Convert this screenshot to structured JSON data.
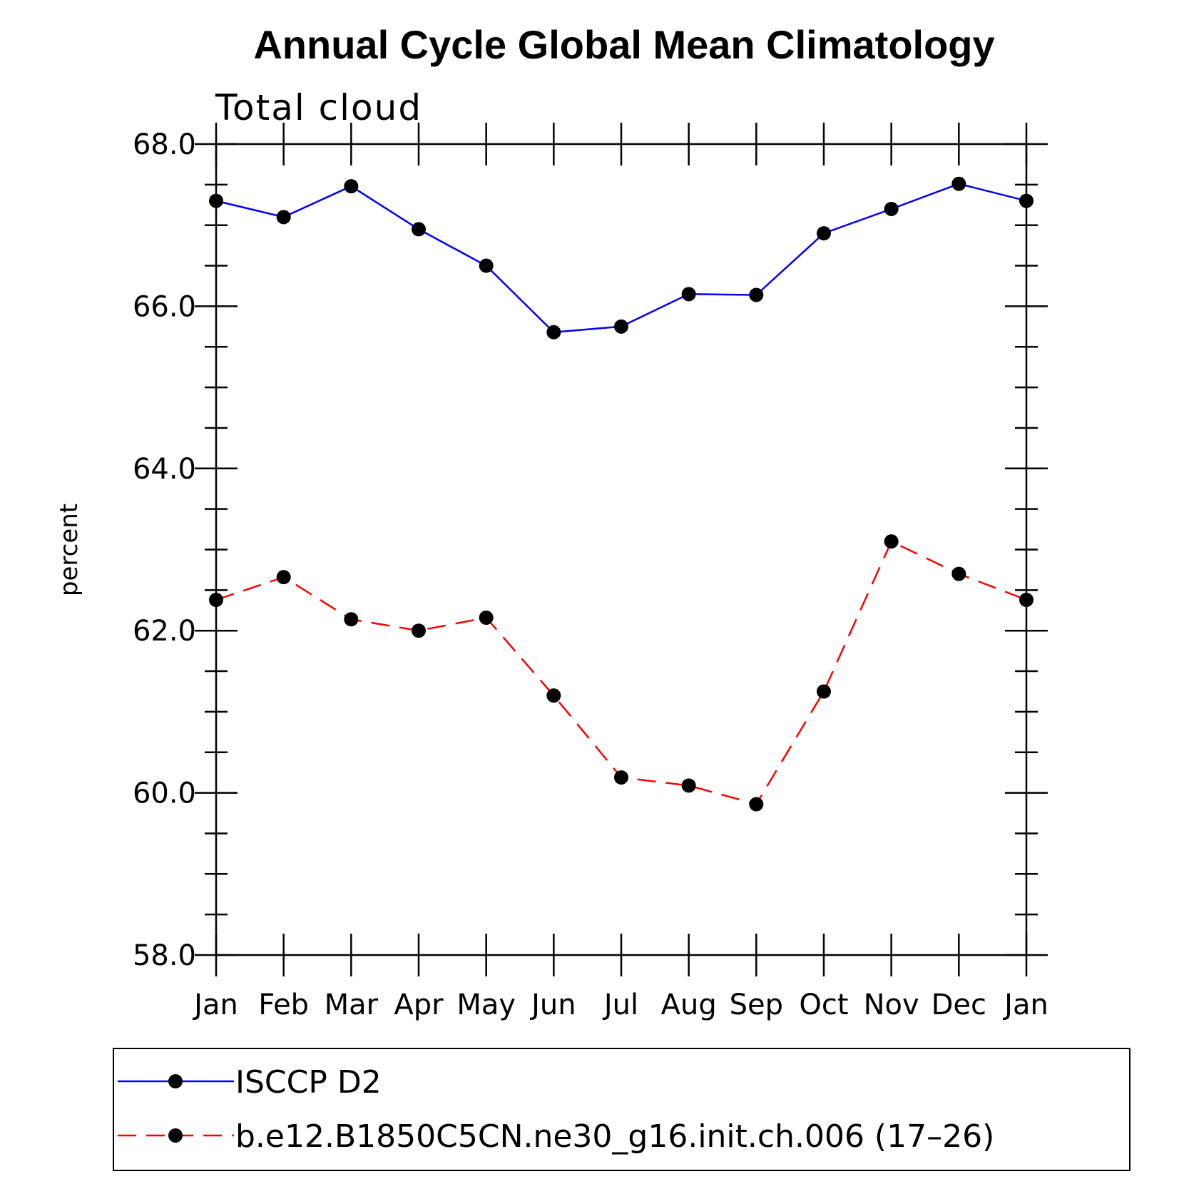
{
  "chart_data": {
    "type": "line",
    "title": "Annual Cycle Global Mean Climatology",
    "subtitle": "Total cloud",
    "xlabel": "",
    "ylabel": "percent",
    "categories": [
      "Jan",
      "Feb",
      "Mar",
      "Apr",
      "May",
      "Jun",
      "Jul",
      "Aug",
      "Sep",
      "Oct",
      "Nov",
      "Dec",
      "Jan"
    ],
    "y_ticks": [
      "58.0",
      "60.0",
      "62.0",
      "64.0",
      "66.0",
      "68.0"
    ],
    "ylim": [
      58,
      68
    ],
    "grid": false,
    "legend_position": "bottom",
    "series": [
      {
        "name": "ISCCP D2",
        "color": "#0000ff",
        "line_style": "solid",
        "marker": "filled-circle",
        "values": [
          67.3,
          67.1,
          67.48,
          66.95,
          66.5,
          65.68,
          65.75,
          66.15,
          66.14,
          66.9,
          67.2,
          67.51,
          67.3
        ]
      },
      {
        "name": "b.e12.B1850C5CN.ne30_g16.init.ch.006 (17–26)",
        "color": "#ff0000",
        "line_style": "dashed",
        "marker": "filled-circle",
        "values": [
          62.38,
          62.66,
          62.14,
          62.0,
          62.16,
          61.2,
          60.19,
          60.09,
          59.86,
          61.25,
          63.1,
          62.7,
          62.38
        ]
      }
    ]
  }
}
